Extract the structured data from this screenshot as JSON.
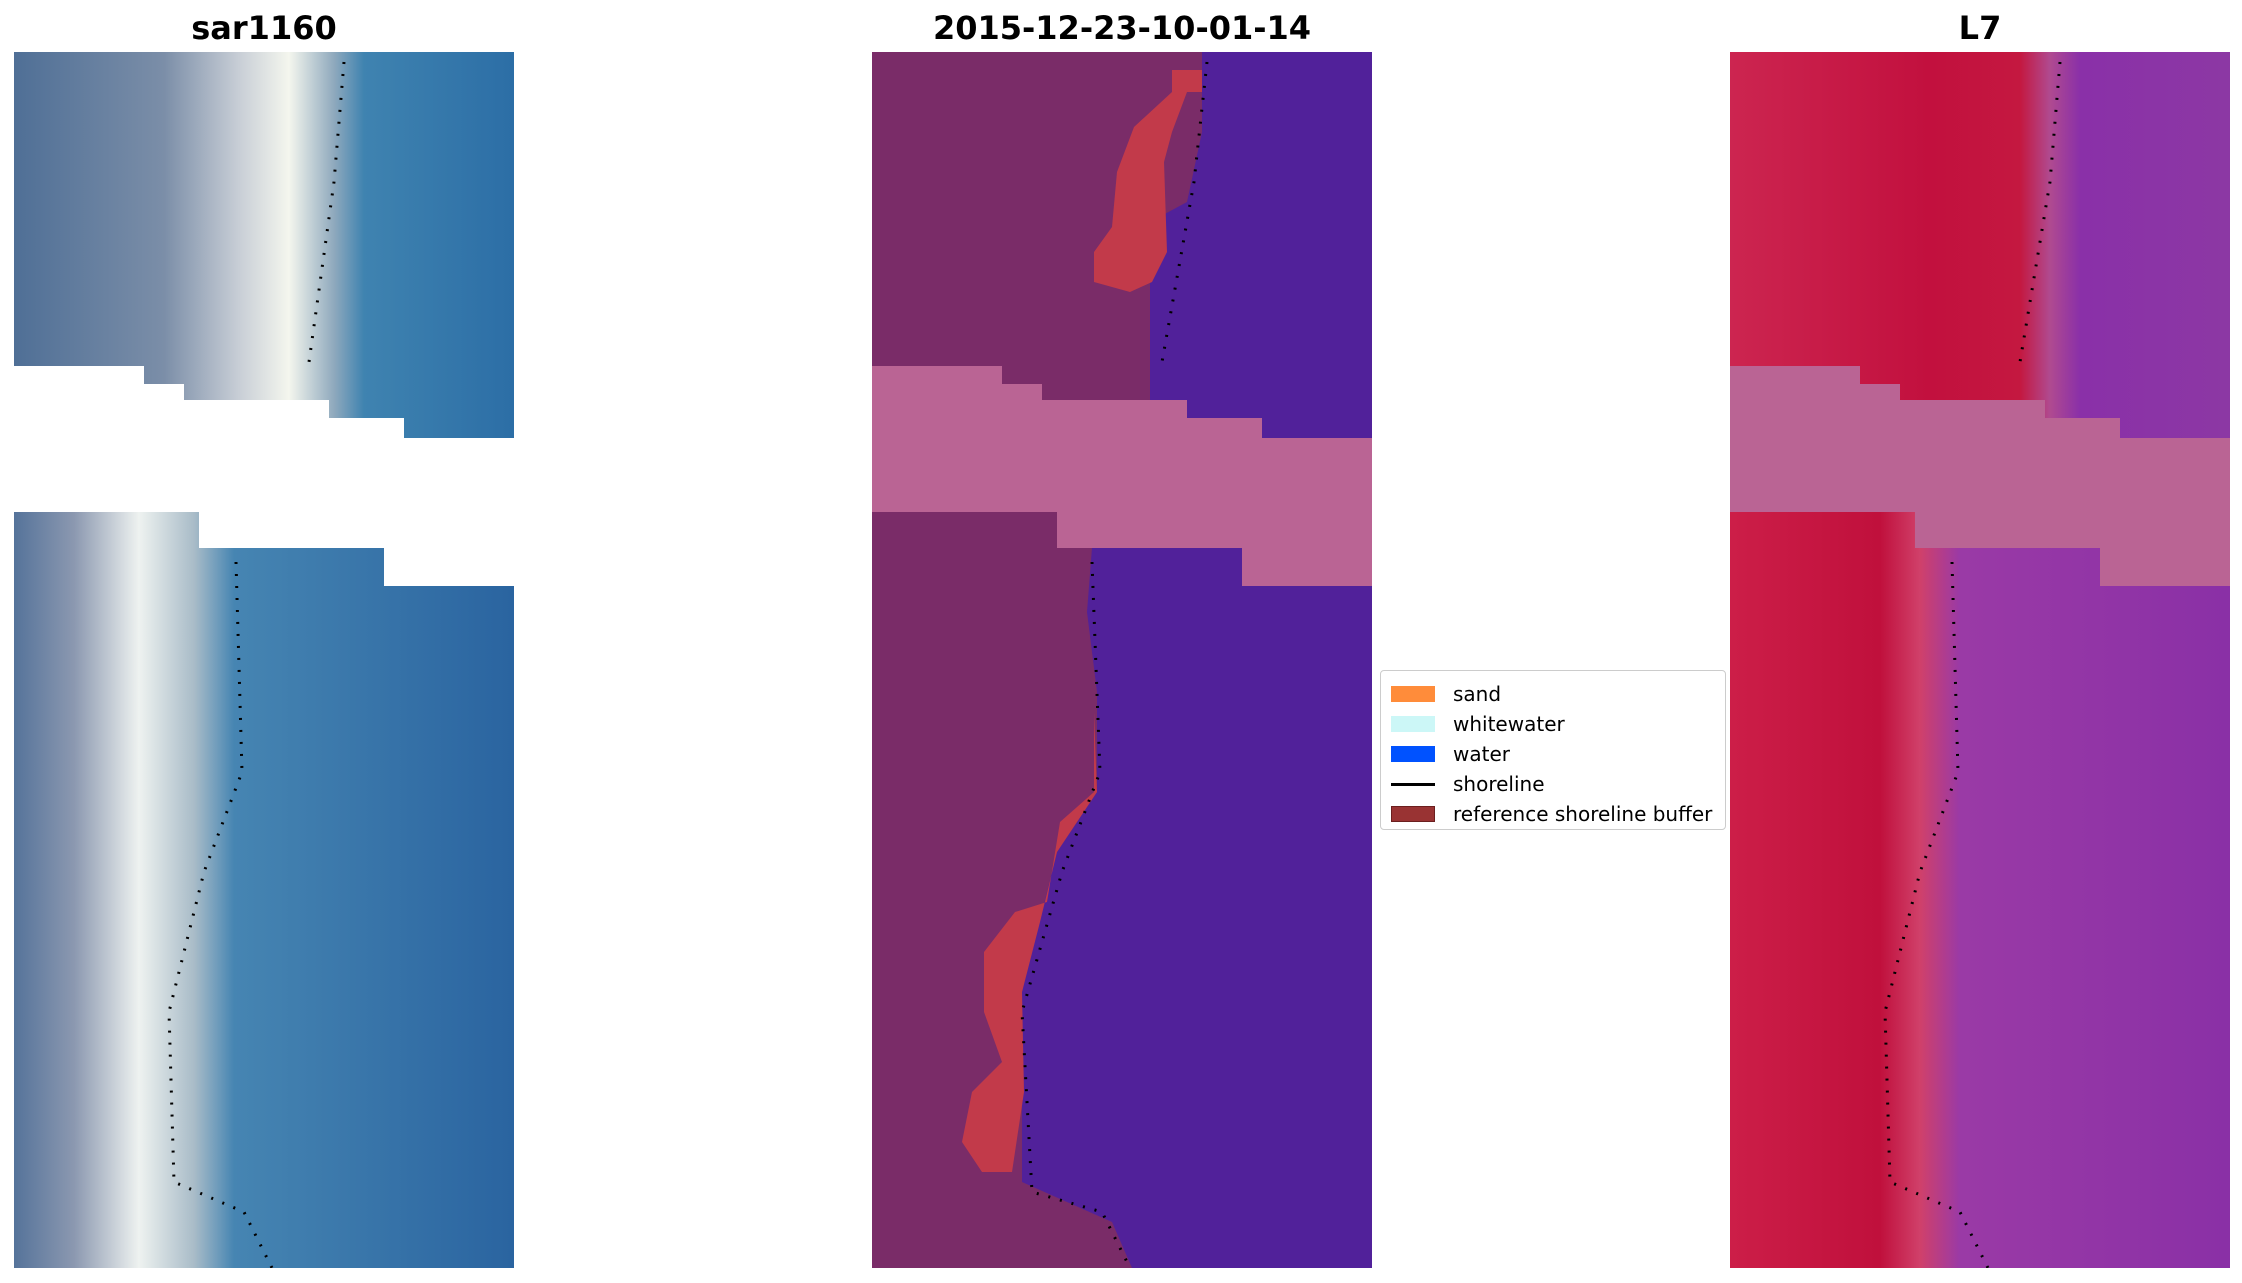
{
  "panels": [
    {
      "title": "sar1160",
      "image": "sar1160 satellite image"
    },
    {
      "title": "2015-12-23-10-01-14",
      "image": "classified image"
    },
    {
      "title": "L7",
      "image": "L7 false color image"
    }
  ],
  "legend": {
    "items": [
      {
        "label": "sand",
        "color": "#ff8c3a",
        "kind": "patch"
      },
      {
        "label": "whitewater",
        "color": "#ccf7f7",
        "kind": "patch"
      },
      {
        "label": "water",
        "color": "#0052ff",
        "kind": "patch"
      },
      {
        "label": "shoreline",
        "color": "#000000",
        "kind": "line"
      },
      {
        "label": "reference shoreline buffer",
        "color": "#993333",
        "kind": "patch"
      }
    ]
  },
  "colors": {
    "sar_land": "#6a7f9e",
    "sar_sand": "#e8ecea",
    "sar_water": "#2f6fa8",
    "class_land": "#7a2c68",
    "class_water": "#51219a",
    "class_buffer": "#c23a4a",
    "class_nodata": "#ba6494",
    "l7_land": "#c41840",
    "l7_water": "#8c38a4",
    "nodata": "#ffffff"
  }
}
